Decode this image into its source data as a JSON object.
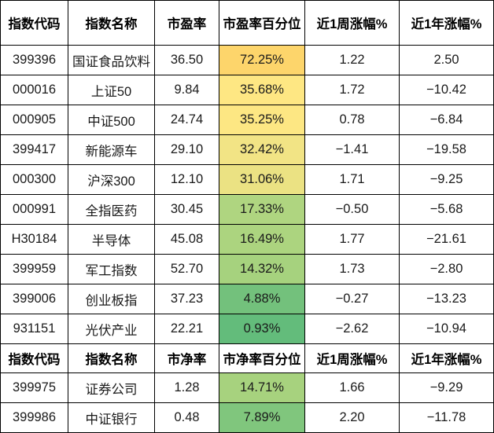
{
  "pe_table": {
    "headers": [
      "指数代码",
      "指数名称",
      "市盈率",
      "市盈率百分位",
      "近1周涨幅%",
      "近1年涨幅%"
    ],
    "rows": [
      {
        "code": "399396",
        "name": "国证食品饮料",
        "ratio": "36.50",
        "percentile": "72.25%",
        "week": "1.22",
        "year": "2.50",
        "color": "#fdd56b"
      },
      {
        "code": "000016",
        "name": "上证50",
        "ratio": "9.84",
        "percentile": "35.68%",
        "week": "1.72",
        "year": "−10.42",
        "color": "#fee783"
      },
      {
        "code": "000905",
        "name": "中证500",
        "ratio": "24.74",
        "percentile": "35.25%",
        "week": "0.78",
        "year": "−6.84",
        "color": "#fde783"
      },
      {
        "code": "399417",
        "name": "新能源车",
        "ratio": "29.10",
        "percentile": "32.42%",
        "week": "−1.41",
        "year": "−19.58",
        "color": "#f2e485"
      },
      {
        "code": "000300",
        "name": "沪深300",
        "ratio": "12.10",
        "percentile": "31.06%",
        "week": "1.71",
        "year": "−9.25",
        "color": "#ebe283"
      },
      {
        "code": "000991",
        "name": "全指医药",
        "ratio": "30.45",
        "percentile": "17.33%",
        "week": "−0.50",
        "year": "−5.68",
        "color": "#afd580"
      },
      {
        "code": "H30184",
        "name": "半导体",
        "ratio": "45.08",
        "percentile": "16.49%",
        "week": "1.77",
        "year": "−21.61",
        "color": "#acd47f"
      },
      {
        "code": "399959",
        "name": "军工指数",
        "ratio": "52.70",
        "percentile": "14.32%",
        "week": "1.73",
        "year": "−2.80",
        "color": "#a6d27e"
      },
      {
        "code": "399006",
        "name": "创业板指",
        "ratio": "37.23",
        "percentile": "4.88%",
        "week": "−0.27",
        "year": "−13.23",
        "color": "#73c17c"
      },
      {
        "code": "931151",
        "name": "光伏产业",
        "ratio": "22.21",
        "percentile": "0.93%",
        "week": "−2.62",
        "year": "−10.94",
        "color": "#63bc7b"
      }
    ]
  },
  "pb_table": {
    "headers": [
      "指数代码",
      "指数名称",
      "市净率",
      "市净率百分位",
      "近1周涨幅%",
      "近1年涨幅%"
    ],
    "rows": [
      {
        "code": "399975",
        "name": "证券公司",
        "ratio": "1.28",
        "percentile": "14.71%",
        "week": "1.66",
        "year": "−9.29",
        "color": "#a7d27e"
      },
      {
        "code": "399986",
        "name": "中证银行",
        "ratio": "0.48",
        "percentile": "7.89%",
        "week": "2.20",
        "year": "−11.78",
        "color": "#80c67d"
      }
    ]
  }
}
